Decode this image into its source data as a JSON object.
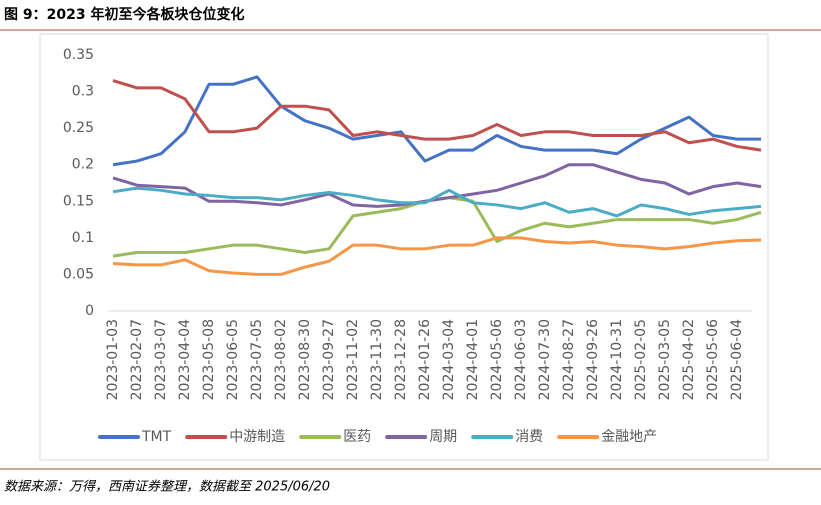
{
  "header": {
    "title": "图 9：2023 年初至今各板块仓位变化"
  },
  "chart_data": {
    "type": "line",
    "categories": [
      "2023-01-03",
      "2023-02-07",
      "2023-03-07",
      "2023-04-04",
      "2023-05-08",
      "2023-06-05",
      "2023-07-05",
      "2023-08-02",
      "2023-08-30",
      "2023-09-27",
      "2023-11-02",
      "2023-11-30",
      "2023-12-28",
      "2024-01-26",
      "2024-03-04",
      "2024-04-01",
      "2024-05-06",
      "2024-06-03",
      "2024-07-30",
      "2024-08-27",
      "2024-09-26",
      "2024-10-31",
      "2025-02-05",
      "2025-03-05",
      "2025-04-02",
      "2025-05-06",
      "2025-06-04",
      null
    ],
    "series": [
      {
        "name": "TMT",
        "color": "#4472c4",
        "values": [
          0.2,
          0.205,
          0.215,
          0.245,
          0.31,
          0.31,
          0.32,
          0.28,
          0.26,
          0.25,
          0.235,
          0.24,
          0.245,
          0.205,
          0.22,
          0.22,
          0.24,
          0.225,
          0.22,
          0.22,
          0.22,
          0.215,
          0.235,
          0.25,
          0.265,
          0.24,
          0.235,
          0.235
        ]
      },
      {
        "name": "中游制造",
        "color": "#c0504d",
        "values": [
          0.315,
          0.305,
          0.305,
          0.29,
          0.245,
          0.245,
          0.25,
          0.28,
          0.28,
          0.275,
          0.24,
          0.245,
          0.24,
          0.235,
          0.235,
          0.24,
          0.255,
          0.24,
          0.245,
          0.245,
          0.24,
          0.24,
          0.24,
          0.245,
          0.23,
          0.235,
          0.225,
          0.22
        ]
      },
      {
        "name": "医药",
        "color": "#9bbb59",
        "values": [
          0.075,
          0.08,
          0.08,
          0.08,
          0.085,
          0.09,
          0.09,
          0.085,
          0.08,
          0.085,
          0.13,
          0.135,
          0.14,
          0.15,
          0.155,
          0.15,
          0.095,
          0.11,
          0.12,
          0.115,
          0.12,
          0.125,
          0.125,
          0.125,
          0.125,
          0.12,
          0.125,
          0.135
        ]
      },
      {
        "name": "周期",
        "color": "#8064a2",
        "values": [
          0.182,
          0.172,
          0.17,
          0.168,
          0.15,
          0.15,
          0.148,
          0.145,
          0.152,
          0.16,
          0.145,
          0.143,
          0.145,
          0.15,
          0.155,
          0.16,
          0.165,
          0.175,
          0.185,
          0.2,
          0.2,
          0.19,
          0.18,
          0.175,
          0.16,
          0.17,
          0.175,
          0.17
        ]
      },
      {
        "name": "消费",
        "color": "#4bacc6",
        "values": [
          0.163,
          0.168,
          0.165,
          0.16,
          0.158,
          0.155,
          0.155,
          0.152,
          0.158,
          0.162,
          0.158,
          0.152,
          0.148,
          0.148,
          0.165,
          0.148,
          0.145,
          0.14,
          0.148,
          0.135,
          0.14,
          0.13,
          0.145,
          0.14,
          0.132,
          0.137,
          0.14,
          0.143
        ]
      },
      {
        "name": "金融地产",
        "color": "#f79646",
        "values": [
          0.065,
          0.063,
          0.063,
          0.07,
          0.055,
          0.052,
          0.05,
          0.05,
          0.06,
          0.068,
          0.09,
          0.09,
          0.085,
          0.085,
          0.09,
          0.09,
          0.1,
          0.1,
          0.095,
          0.093,
          0.095,
          0.09,
          0.088,
          0.085,
          0.088,
          0.093,
          0.096,
          0.097
        ]
      }
    ],
    "ylim": [
      0,
      0.35
    ],
    "yticks": [
      0,
      0.05,
      0.1,
      0.15,
      0.2,
      0.25,
      0.3,
      0.35
    ],
    "grid": false,
    "legend": "bottom"
  },
  "footer": {
    "source": "数据来源：万得，西南证券整理，数据截至 2025/06/20"
  }
}
